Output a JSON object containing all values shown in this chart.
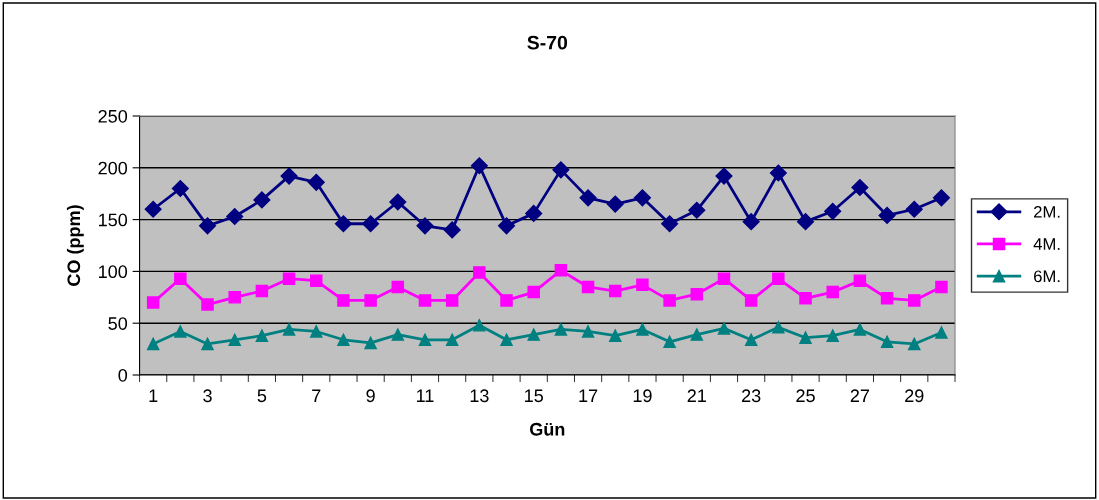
{
  "chart_data": {
    "type": "line",
    "title": "S-70",
    "xlabel": "Gün",
    "ylabel": "CO (ppm)",
    "categories": [
      "1",
      null,
      "3",
      null,
      "5",
      null,
      "7",
      null,
      "9",
      null,
      "11",
      null,
      "13",
      null,
      "15",
      null,
      "17",
      null,
      "19",
      null,
      "21",
      null,
      "23",
      null,
      "25",
      null,
      "27",
      null,
      "29",
      null
    ],
    "series": [
      {
        "name": "2M.",
        "color": "#000080",
        "marker": "diamond",
        "values": [
          160,
          180,
          144,
          153,
          169,
          192,
          186,
          146,
          146,
          167,
          144,
          140,
          202,
          144,
          156,
          198,
          171,
          165,
          171,
          146,
          159,
          192,
          148,
          195,
          148,
          158,
          181,
          154,
          160,
          171
        ]
      },
      {
        "name": "4M.",
        "color": "#ff00ff",
        "marker": "square",
        "values": [
          70,
          93,
          68,
          75,
          81,
          93,
          91,
          72,
          72,
          85,
          72,
          72,
          99,
          72,
          80,
          101,
          85,
          81,
          87,
          72,
          78,
          93,
          72,
          93,
          74,
          80,
          91,
          74,
          72,
          85
        ]
      },
      {
        "name": "6M.",
        "color": "#008080",
        "marker": "triangle",
        "values": [
          30,
          42,
          30,
          34,
          38,
          44,
          42,
          34,
          31,
          39,
          34,
          34,
          48,
          34,
          39,
          44,
          42,
          38,
          44,
          32,
          39,
          45,
          34,
          46,
          36,
          38,
          44,
          32,
          30,
          41
        ]
      }
    ],
    "ylim": [
      0,
      250
    ],
    "yticks": [
      0,
      50,
      100,
      150,
      200,
      250
    ],
    "grid": "y",
    "legend": "right"
  }
}
